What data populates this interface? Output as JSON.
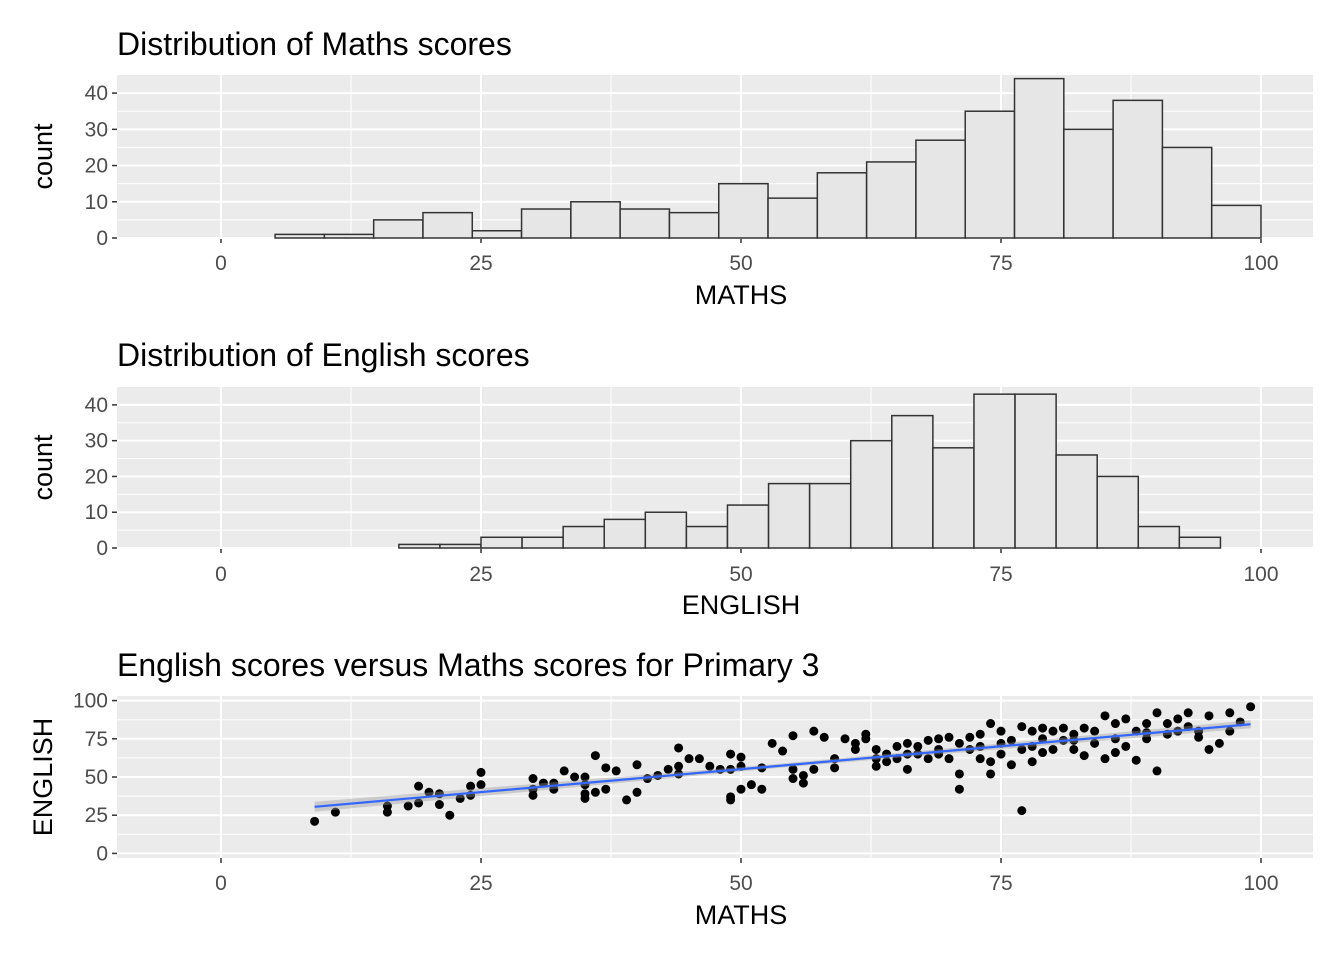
{
  "chart_data": [
    {
      "type": "bar",
      "title": "Distribution of Maths scores",
      "xlabel": "MATHS",
      "ylabel": "count",
      "xlim": [
        -10,
        105
      ],
      "ylim": [
        0,
        45
      ],
      "xticks": [
        0,
        25,
        50,
        75,
        100
      ],
      "yticks": [
        0,
        10,
        20,
        30,
        40
      ],
      "bin_start": 5.2,
      "bin_width": 4.74,
      "values": [
        1,
        1,
        5,
        7,
        2,
        8,
        10,
        8,
        7,
        15,
        11,
        18,
        21,
        27,
        35,
        44,
        30,
        38,
        25,
        9
      ],
      "fill": "#e6e6e6",
      "stroke": "#333333"
    },
    {
      "type": "bar",
      "title": "Distribution of English scores",
      "xlabel": "ENGLISH",
      "ylabel": "count",
      "xlim": [
        -10,
        105
      ],
      "ylim": [
        0,
        45
      ],
      "xticks": [
        0,
        25,
        50,
        75,
        100
      ],
      "yticks": [
        0,
        10,
        20,
        30,
        40
      ],
      "bin_start": 17.1,
      "bin_width": 3.95,
      "values": [
        1,
        1,
        3,
        3,
        6,
        8,
        10,
        6,
        12,
        18,
        18,
        30,
        37,
        28,
        43,
        43,
        26,
        20,
        6,
        3
      ],
      "fill": "#e6e6e6",
      "stroke": "#333333"
    },
    {
      "type": "scatter",
      "title": "English scores versus Maths scores for Primary 3",
      "xlabel": "MATHS",
      "ylabel": "ENGLISH",
      "xlim": [
        -10,
        105
      ],
      "ylim": [
        -3,
        103
      ],
      "xticks": [
        0,
        25,
        50,
        75,
        100
      ],
      "yticks": [
        0,
        25,
        50,
        75,
        100
      ],
      "trend_line": {
        "x": [
          9,
          99
        ],
        "y": [
          30.5,
          84.5
        ],
        "color": "#3366ff"
      },
      "points": [
        [
          9,
          21
        ],
        [
          11,
          27
        ],
        [
          16,
          27
        ],
        [
          16,
          31
        ],
        [
          18,
          31
        ],
        [
          19,
          33
        ],
        [
          19,
          44
        ],
        [
          20,
          40
        ],
        [
          21,
          39
        ],
        [
          21,
          32
        ],
        [
          22,
          25
        ],
        [
          23,
          36
        ],
        [
          24,
          38
        ],
        [
          24,
          44
        ],
        [
          25,
          45
        ],
        [
          25,
          53
        ],
        [
          30,
          38
        ],
        [
          30,
          42
        ],
        [
          30,
          49
        ],
        [
          31,
          46
        ],
        [
          32,
          42
        ],
        [
          32,
          46
        ],
        [
          33,
          54
        ],
        [
          34,
          50
        ],
        [
          35,
          36
        ],
        [
          35,
          39
        ],
        [
          35,
          45
        ],
        [
          35,
          50
        ],
        [
          36,
          40
        ],
        [
          36,
          64
        ],
        [
          37,
          42
        ],
        [
          37,
          56
        ],
        [
          38,
          54
        ],
        [
          39,
          35
        ],
        [
          40,
          40
        ],
        [
          40,
          58
        ],
        [
          41,
          49
        ],
        [
          42,
          51
        ],
        [
          43,
          55
        ],
        [
          44,
          52
        ],
        [
          44,
          57
        ],
        [
          44,
          69
        ],
        [
          45,
          62
        ],
        [
          46,
          62
        ],
        [
          47,
          57
        ],
        [
          48,
          55
        ],
        [
          49,
          55
        ],
        [
          49,
          65
        ],
        [
          49,
          37
        ],
        [
          49,
          35
        ],
        [
          50,
          42
        ],
        [
          50,
          57
        ],
        [
          50,
          63
        ],
        [
          51,
          45
        ],
        [
          52,
          42
        ],
        [
          52,
          56
        ],
        [
          53,
          72
        ],
        [
          54,
          67
        ],
        [
          55,
          49
        ],
        [
          55,
          55
        ],
        [
          55,
          77
        ],
        [
          56,
          46
        ],
        [
          56,
          51
        ],
        [
          57,
          55
        ],
        [
          57,
          80
        ],
        [
          58,
          76
        ],
        [
          59,
          56
        ],
        [
          59,
          62
        ],
        [
          60,
          75
        ],
        [
          61,
          68
        ],
        [
          61,
          72
        ],
        [
          62,
          75
        ],
        [
          62,
          78
        ],
        [
          63,
          68
        ],
        [
          63,
          62
        ],
        [
          64,
          60
        ],
        [
          64,
          65
        ],
        [
          65,
          70
        ],
        [
          65,
          62
        ],
        [
          66,
          72
        ],
        [
          66,
          55
        ],
        [
          67,
          70
        ],
        [
          67,
          65
        ],
        [
          68,
          74
        ],
        [
          68,
          62
        ],
        [
          69,
          75
        ],
        [
          69,
          68
        ],
        [
          70,
          76
        ],
        [
          70,
          62
        ],
        [
          71,
          72
        ],
        [
          71,
          52
        ],
        [
          71,
          42
        ],
        [
          72,
          76
        ],
        [
          72,
          68
        ],
        [
          73,
          78
        ],
        [
          73,
          70
        ],
        [
          74,
          85
        ],
        [
          74,
          60
        ],
        [
          74,
          52
        ],
        [
          75,
          80
        ],
        [
          75,
          72
        ],
        [
          75,
          65
        ],
        [
          76,
          74
        ],
        [
          76,
          58
        ],
        [
          77,
          83
        ],
        [
          77,
          68
        ],
        [
          77,
          28
        ],
        [
          78,
          80
        ],
        [
          78,
          60
        ],
        [
          78,
          70
        ],
        [
          79,
          82
        ],
        [
          79,
          75
        ],
        [
          80,
          80
        ],
        [
          80,
          68
        ],
        [
          81,
          82
        ],
        [
          81,
          74
        ],
        [
          82,
          78
        ],
        [
          82,
          68
        ],
        [
          83,
          82
        ],
        [
          83,
          64
        ],
        [
          84,
          80
        ],
        [
          84,
          72
        ],
        [
          85,
          90
        ],
        [
          85,
          62
        ],
        [
          86,
          85
        ],
        [
          86,
          75
        ],
        [
          87,
          88
        ],
        [
          87,
          70
        ],
        [
          88,
          80
        ],
        [
          88,
          61
        ],
        [
          89,
          85
        ],
        [
          89,
          75
        ],
        [
          90,
          92
        ],
        [
          90,
          54
        ],
        [
          91,
          85
        ],
        [
          91,
          78
        ],
        [
          92,
          88
        ],
        [
          92,
          80
        ],
        [
          93,
          92
        ],
        [
          93,
          83
        ],
        [
          94,
          80
        ],
        [
          95,
          90
        ],
        [
          95,
          68
        ],
        [
          96,
          72
        ],
        [
          97,
          92
        ],
        [
          97,
          80
        ],
        [
          98,
          86
        ],
        [
          99,
          96
        ],
        [
          63,
          57
        ],
        [
          66,
          65
        ],
        [
          69,
          65
        ],
        [
          73,
          62
        ],
        [
          79,
          66
        ],
        [
          82,
          74
        ],
        [
          86,
          66
        ],
        [
          89,
          79
        ],
        [
          94,
          76
        ]
      ]
    }
  ],
  "colors": {
    "panel_bg": "#ebebeb",
    "grid": "#ffffff",
    "point": "#000000"
  }
}
